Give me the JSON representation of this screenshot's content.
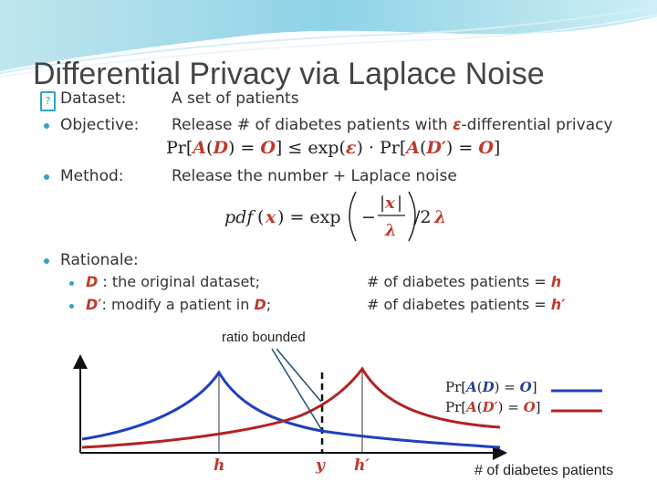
{
  "slide": {
    "title": "Differential Privacy via Laplace Noise",
    "colors": {
      "accent": "#2ea3c7",
      "curve_blue": "#1f3fbf",
      "curve_red": "#b22222",
      "highlight": "#c0392b"
    }
  },
  "bullets": [
    {
      "label": "Dataset:",
      "text": "A set of patients"
    },
    {
      "label": "Objective:",
      "text_prefix": "Release # of diabetes patients with ",
      "text_eps": "ε",
      "text_suffix": "-differential privacy"
    },
    {
      "label": "Method:",
      "text": "Release the number + Laplace noise"
    },
    {
      "label": "Rationale:"
    }
  ],
  "formulas": {
    "objective": "Pr[A(D) = O] ≤ exp(ε) · Pr[A(D′) = O]",
    "method": "pdf(x) = exp(−|x|/λ)/2λ"
  },
  "rationale": [
    {
      "left_sym": "D",
      "left_text": " : the original dataset;",
      "right_text": "# of diabetes patients = ",
      "right_sym": "h"
    },
    {
      "left_sym": "D′",
      "left_text": ": modify a patient in ",
      "left_sym2": "D",
      "left_end": ";",
      "right_text": "# of diabetes patients = ",
      "right_sym": "h′"
    }
  ],
  "plot": {
    "annotation": "ratio bounded",
    "axis_labels": {
      "h": "h",
      "y": "y",
      "h_prime": "h′"
    },
    "xlabel": "# of diabetes patients",
    "legend": [
      {
        "label": "Pr[A(D) = O]",
        "color": "#1f3fbf"
      },
      {
        "label": "Pr[A(D′) = O]",
        "color": "#b22222"
      }
    ]
  }
}
